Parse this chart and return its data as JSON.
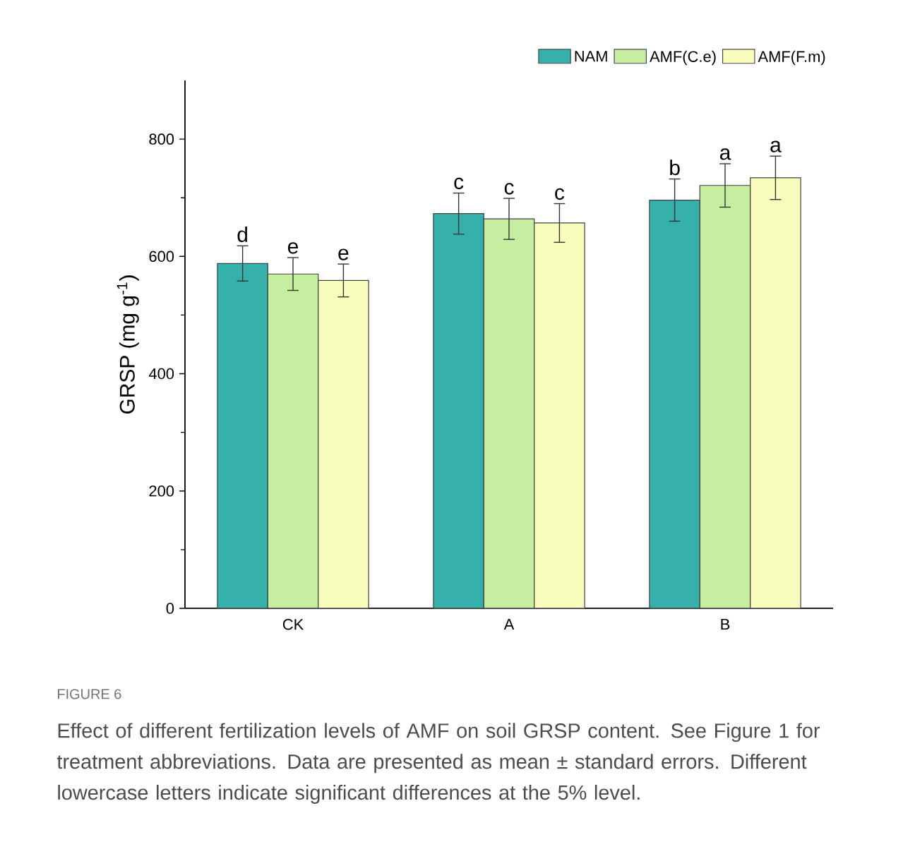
{
  "chart_data": {
    "type": "bar",
    "ylabel": "GRSP (mg g$^{-1}$)",
    "categories": [
      "CK",
      "A",
      "B"
    ],
    "series": [
      {
        "name": "NAM",
        "color": "#36b0aa",
        "values": [
          588,
          673,
          696
        ],
        "errors": [
          30,
          35,
          36
        ]
      },
      {
        "name": "AMF(C.e)",
        "color": "#c5eea0",
        "values": [
          570,
          664,
          721
        ],
        "errors": [
          28,
          35,
          37
        ]
      },
      {
        "name": "AMF(F.m)",
        "color": "#f8fdbb",
        "values": [
          559,
          657,
          734
        ],
        "errors": [
          28,
          33,
          37
        ]
      }
    ],
    "ylim": [
      0,
      900
    ],
    "yticks": [
      0,
      {
        "value": 100,
        "label": null
      },
      200,
      {
        "value": 300,
        "label": null
      },
      400,
      {
        "value": 500,
        "label": null
      },
      600,
      {
        "value": 700,
        "label": null
      },
      800
    ],
    "legend": "top right",
    "grid": false,
    "annotations": [
      {
        "text": "d",
        "x": "CK",
        "y": 588
      },
      {
        "text": "e",
        "x": "CK",
        "y": 570
      },
      {
        "text": "e",
        "x": "CK",
        "y": 559
      },
      {
        "text": "c",
        "x": "A",
        "y": 673
      },
      {
        "text": "c",
        "x": "A",
        "y": 664
      },
      {
        "text": "c",
        "x": "A",
        "y": 657
      },
      {
        "text": "b",
        "x": "B",
        "y": 696
      },
      {
        "text": "a",
        "x": "B",
        "y": 721
      },
      {
        "text": "a",
        "x": "B",
        "y": 734
      },
      "FIGURE 6",
      "Effect of different fertilization levels of AMF on soil GRSP content. See Figure 1 for treatment abbreviations. Data are presented as mean ± standard errors. Different lowercase letters indicate significant differences at the 5% level."
    ]
  }
}
